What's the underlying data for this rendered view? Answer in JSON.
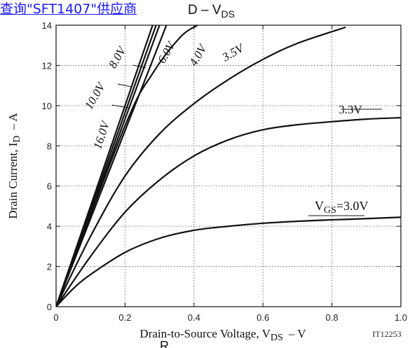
{
  "header": {
    "link_text": "查询\"SFT1407\"供应商",
    "title_main": "D  –  V",
    "title_sub": "DS"
  },
  "chart_data": {
    "type": "line",
    "title": "ID – VDS",
    "xlabel_main": "Drain-to-Source Voltage, V",
    "xlabel_sub": "DS",
    "xlabel_unit": "–  V",
    "ylabel_main": "Drain Current, I",
    "ylabel_sub": "D",
    "ylabel_unit": "–  A",
    "figure_id": "IT12253",
    "footer_text": "R",
    "xlim": [
      0,
      1.0
    ],
    "ylim": [
      0,
      14
    ],
    "x_ticks": [
      0,
      0.2,
      0.4,
      0.6,
      0.8,
      1.0
    ],
    "x_tick_labels": [
      "0",
      "0.2",
      "0.4",
      "0.6",
      "0.8",
      "1.0"
    ],
    "y_ticks": [
      0,
      2,
      4,
      6,
      8,
      10,
      12,
      14
    ],
    "y_tick_labels": [
      "0",
      "2",
      "4",
      "6",
      "8",
      "10",
      "12",
      "14"
    ],
    "grid": true,
    "series": [
      {
        "name": "16.0V",
        "x": [
          0,
          0.28
        ],
        "y": [
          0,
          14.0
        ]
      },
      {
        "name": "10.0V",
        "x": [
          0,
          0.29
        ],
        "y": [
          0,
          14.0
        ]
      },
      {
        "name": "8.0V",
        "x": [
          0,
          0.3
        ],
        "y": [
          0,
          14.0
        ]
      },
      {
        "name": "6.0V",
        "x": [
          0,
          0.32
        ],
        "y": [
          0,
          14.0
        ]
      },
      {
        "name": "4.0V",
        "x": [
          0,
          0.2,
          0.28,
          0.36,
          0.41
        ],
        "y": [
          0,
          9.0,
          11.6,
          13.4,
          14.0
        ]
      },
      {
        "name": "3.5V",
        "x": [
          0,
          0.1,
          0.2,
          0.3,
          0.4,
          0.5,
          0.6,
          0.7,
          0.84
        ],
        "y": [
          0,
          3.5,
          6.5,
          8.6,
          10.1,
          11.3,
          12.3,
          13.1,
          13.9
        ]
      },
      {
        "name": "3.3V",
        "x": [
          0,
          0.1,
          0.2,
          0.3,
          0.4,
          0.5,
          0.6,
          0.7,
          0.8,
          0.9,
          1.0
        ],
        "y": [
          0,
          2.5,
          4.7,
          6.3,
          7.5,
          8.3,
          8.8,
          9.05,
          9.2,
          9.33,
          9.4
        ]
      },
      {
        "name": "VGS=3.0V",
        "x": [
          0,
          0.05,
          0.1,
          0.2,
          0.3,
          0.4,
          0.5,
          0.6,
          0.7,
          0.8,
          0.9,
          1.0
        ],
        "y": [
          0,
          0.9,
          1.6,
          2.7,
          3.4,
          3.8,
          4.0,
          4.15,
          4.25,
          4.32,
          4.38,
          4.45
        ]
      }
    ],
    "annotations": [
      {
        "text": "16.0V",
        "kind": "rotated",
        "series": "16.0V"
      },
      {
        "text": "10.0V",
        "kind": "rotated",
        "series": "10.0V"
      },
      {
        "text": "8.0V",
        "kind": "rotated",
        "series": "8.0V"
      },
      {
        "text": "6.0V",
        "kind": "rotated",
        "series": "6.0V"
      },
      {
        "text": "4.0V",
        "kind": "rotated",
        "series": "4.0V"
      },
      {
        "text": "3.5V",
        "kind": "rotated",
        "series": "3.5V"
      },
      {
        "text": "3.3V",
        "kind": "flat",
        "series": "3.3V"
      },
      {
        "text": "3.0V",
        "kind": "vgs",
        "series": "VGS=3.0V",
        "prefix_main": "V",
        "prefix_sub": "GS",
        "prefix_eq": "="
      }
    ]
  }
}
